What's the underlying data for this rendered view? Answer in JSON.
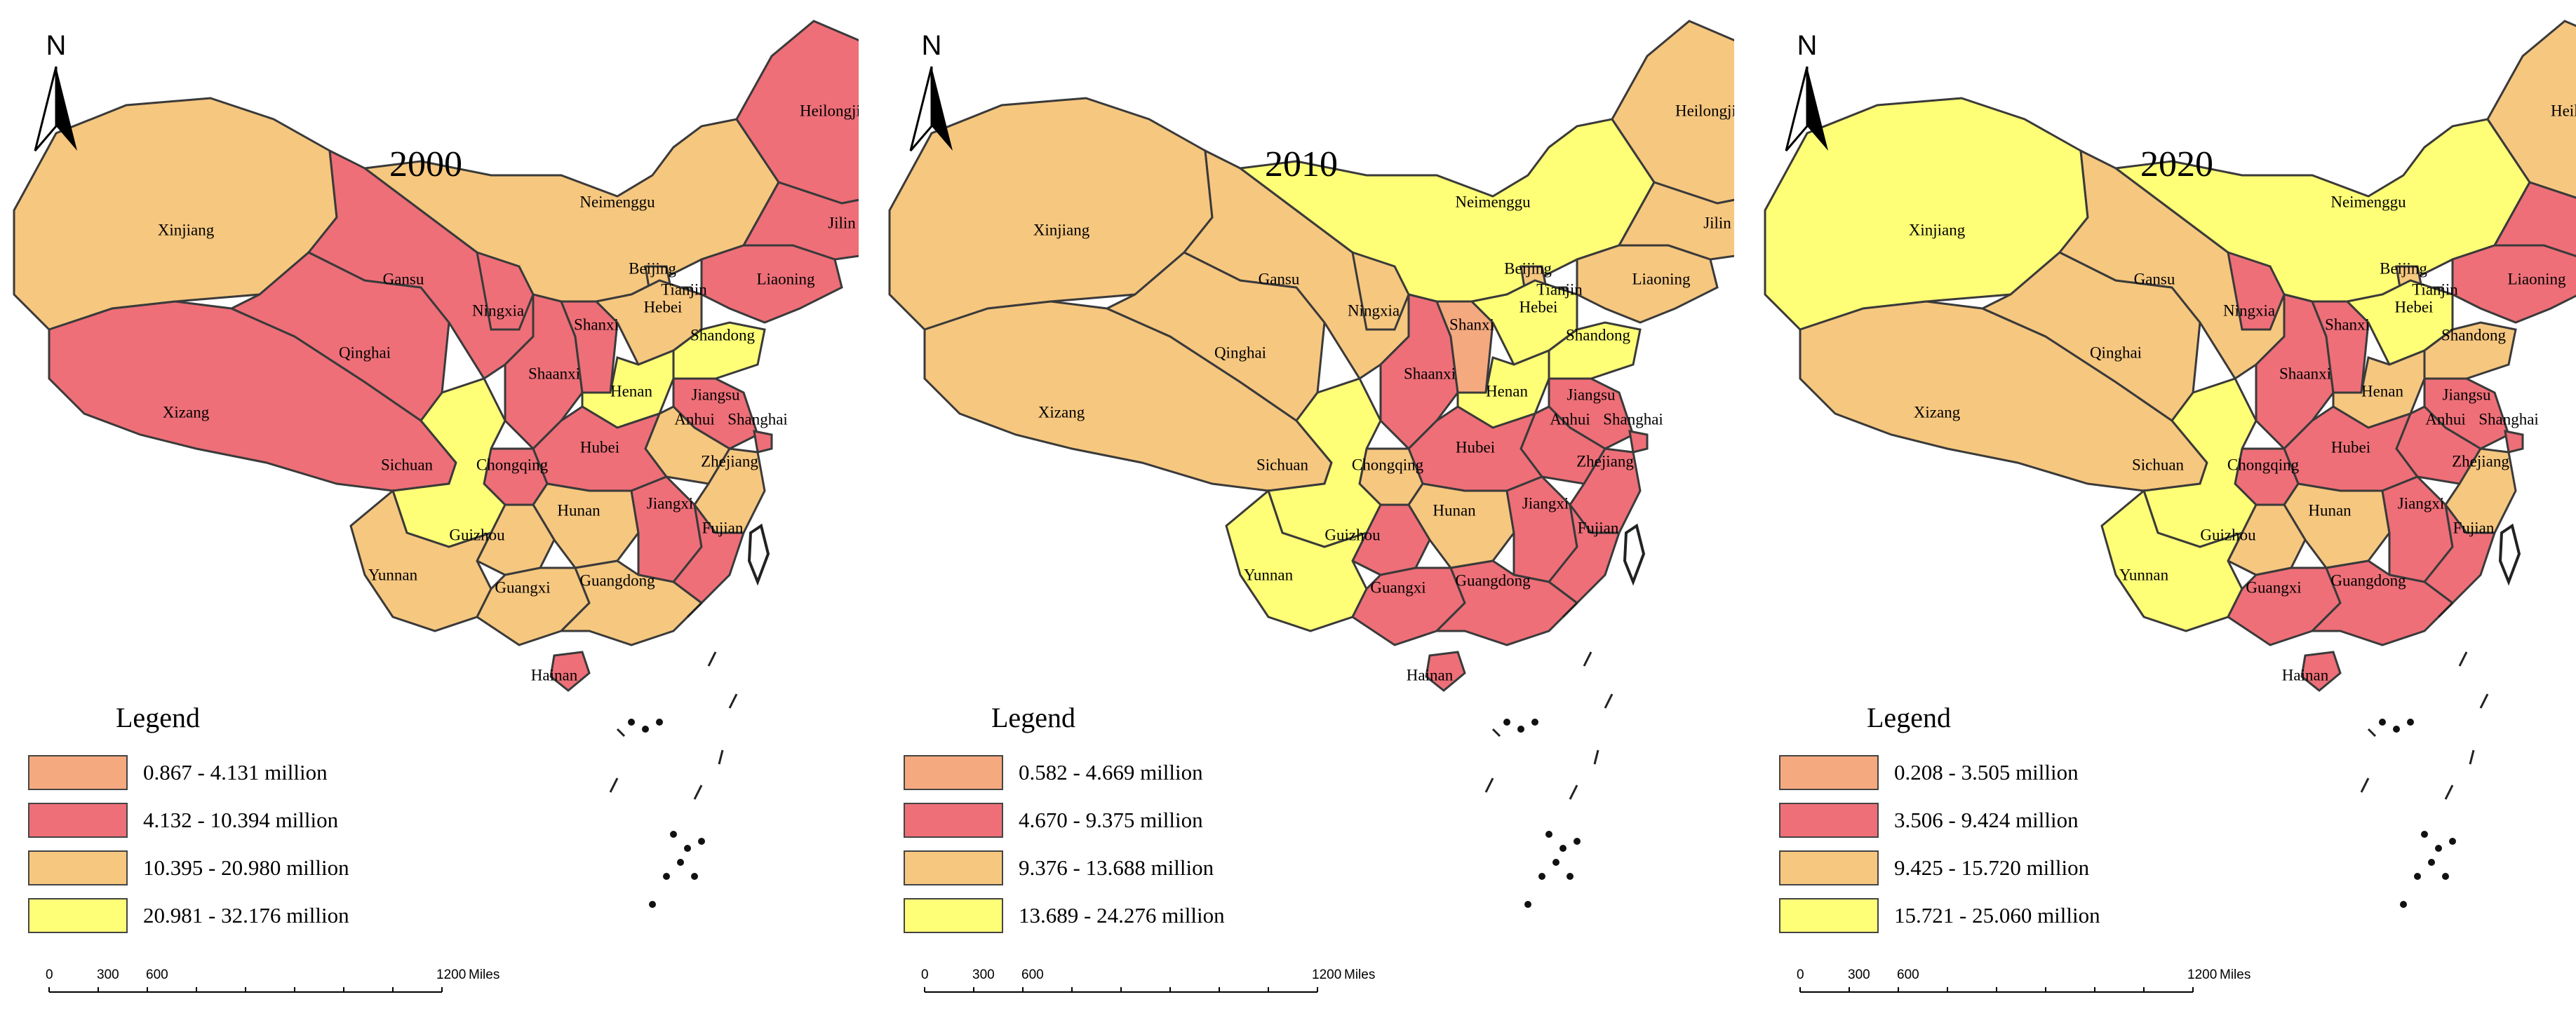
{
  "colors": {
    "c1": "#f5a97f",
    "c2": "#ee6f78",
    "c3": "#f6c77f",
    "c4": "#ffff77",
    "white": "#ffffff"
  },
  "north_label": "N",
  "legend_title": "Legend",
  "scale": {
    "ticks": [
      "0",
      "300",
      "600",
      "1200"
    ],
    "unit": "Miles"
  },
  "panels": [
    {
      "year": "2000",
      "legend": [
        "0.867 - 4.131 million",
        "4.132 - 10.394 million",
        "10.395 - 20.980 million",
        "20.981 - 32.176 million"
      ],
      "classes": {
        "Heilongjiang": "c2",
        "Jilin": "c2",
        "Liaoning": "c2",
        "Neimenggu": "c3",
        "Xinjiang": "c3",
        "Gansu": "c2",
        "Qinghai": "c2",
        "Xizang": "c2",
        "Ningxia": "c2",
        "Shaanxi": "c2",
        "Shanxi": "c2",
        "Beijing": "c3",
        "Tianjin": "white",
        "Hebei": "c3",
        "Shandong": "c4",
        "Henan": "c4",
        "Jiangsu": "c2",
        "Anhui": "c3",
        "Shanghai": "c2",
        "Hubei": "c2",
        "Sichuan": "c4",
        "Chongqing": "c2",
        "Zhejiang": "c3",
        "Hunan": "c3",
        "Jiangxi": "c2",
        "Fujian": "c2",
        "Guizhou": "c3",
        "Yunnan": "c3",
        "Guangxi": "c3",
        "Guangdong": "c3",
        "Hainan": "c2"
      }
    },
    {
      "year": "2010",
      "legend": [
        "0.582 - 4.669 million",
        "4.670 - 9.375 million",
        "9.376 - 13.688 million",
        "13.689 - 24.276 million"
      ],
      "classes": {
        "Heilongjiang": "c3",
        "Jilin": "c3",
        "Liaoning": "c3",
        "Neimenggu": "c4",
        "Xinjiang": "c3",
        "Gansu": "c3",
        "Qinghai": "c3",
        "Xizang": "c3",
        "Ningxia": "c3",
        "Shaanxi": "c2",
        "Shanxi": "c1",
        "Beijing": "c3",
        "Tianjin": "white",
        "Hebei": "c4",
        "Shandong": "c4",
        "Henan": "c4",
        "Jiangsu": "c2",
        "Anhui": "c2",
        "Shanghai": "c2",
        "Hubei": "c2",
        "Sichuan": "c4",
        "Chongqing": "c3",
        "Zhejiang": "c2",
        "Hunan": "c3",
        "Jiangxi": "c2",
        "Fujian": "c2",
        "Guizhou": "c2",
        "Yunnan": "c4",
        "Guangxi": "c2",
        "Guangdong": "c2",
        "Hainan": "c2"
      }
    },
    {
      "year": "2020",
      "legend": [
        "0.208 - 3.505 million",
        "3.506 - 9.424 million",
        "9.425 - 15.720 million",
        "15.721 - 25.060 million"
      ],
      "classes": {
        "Heilongjiang": "c3",
        "Jilin": "c2",
        "Liaoning": "c2",
        "Neimenggu": "c4",
        "Xinjiang": "c4",
        "Gansu": "c3",
        "Qinghai": "c3",
        "Xizang": "c3",
        "Ningxia": "c2",
        "Shaanxi": "c2",
        "Shanxi": "c2",
        "Beijing": "c3",
        "Tianjin": "white",
        "Hebei": "c4",
        "Shandong": "c3",
        "Henan": "c3",
        "Jiangsu": "c2",
        "Anhui": "c2",
        "Shanghai": "c2",
        "Hubei": "c2",
        "Sichuan": "c4",
        "Chongqing": "c2",
        "Zhejiang": "c3",
        "Hunan": "c3",
        "Jiangxi": "c2",
        "Fujian": "c2",
        "Guizhou": "c3",
        "Yunnan": "c4",
        "Guangxi": "c2",
        "Guangdong": "c2",
        "Hainan": "c2"
      }
    }
  ],
  "province_labels": {
    "Heilongjiang": "Heilongjiang",
    "Jilin": "Jilin",
    "Liaoning": "Liaoning",
    "Neimenggu": "Neimenggu",
    "Xinjiang": "Xinjiang",
    "Gansu": "Gansu",
    "Qinghai": "Qinghai",
    "Xizang": "Xizang",
    "Ningxia": "Ningxia",
    "Shaanxi": "Shaanxi",
    "Shanxi": "Shanxi",
    "Beijing": "Beijing",
    "Tianjin": "Tianjin",
    "Hebei": "Hebei",
    "Shandong": "Shandong",
    "Henan": "Henan",
    "Jiangsu": "Jiangsu",
    "Anhui": "Anhui",
    "Shanghai": "Shanghai",
    "Hubei": "Hubei",
    "Sichuan": "Sichuan",
    "Chongqing": "Chongqing",
    "Zhejiang": "Zhejiang",
    "Hunan": "Hunan",
    "Jiangxi": "Jiangxi",
    "Fujian": "Fujian",
    "Guizhou": "Guizhou",
    "Yunnan": "Yunnan",
    "Guangxi": "Guangxi",
    "Guangdong": "Guangdong",
    "Hainan": "Hainan"
  }
}
